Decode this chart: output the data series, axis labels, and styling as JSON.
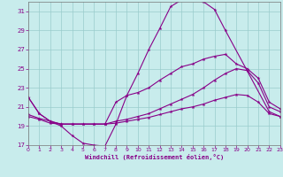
{
  "xlabel": "Windchill (Refroidissement éolien,°C)",
  "background_color": "#c8ecec",
  "grid_color": "#99cccc",
  "line_color": "#880088",
  "xlim": [
    0,
    23
  ],
  "ylim": [
    17,
    32
  ],
  "yticks": [
    17,
    19,
    21,
    23,
    25,
    27,
    29,
    31
  ],
  "xticks": [
    0,
    1,
    2,
    3,
    4,
    5,
    6,
    7,
    8,
    9,
    10,
    11,
    12,
    13,
    14,
    15,
    16,
    17,
    18,
    19,
    20,
    21,
    22,
    23
  ],
  "series": [
    {
      "x": [
        0,
        1,
        2,
        3,
        4,
        5,
        6,
        7,
        8,
        9,
        10,
        11,
        12,
        13,
        14,
        15,
        16,
        17,
        18,
        22,
        23
      ],
      "y": [
        22,
        20.3,
        19.5,
        19.0,
        18.0,
        17.2,
        17.0,
        16.9,
        19.2,
        22.2,
        24.5,
        27.0,
        29.2,
        31.5,
        32.2,
        32.2,
        32.0,
        31.2,
        29.0,
        20.5,
        20.0
      ]
    },
    {
      "x": [
        0,
        1,
        2,
        3,
        7,
        8,
        9,
        10,
        11,
        12,
        13,
        14,
        15,
        16,
        17,
        18,
        19,
        20,
        21,
        22,
        23
      ],
      "y": [
        22,
        20.3,
        19.5,
        19.2,
        19.2,
        21.5,
        22.2,
        22.5,
        23.0,
        23.8,
        24.5,
        25.2,
        25.5,
        26.0,
        26.3,
        26.5,
        25.5,
        25.0,
        24.0,
        21.5,
        20.8
      ]
    },
    {
      "x": [
        0,
        1,
        2,
        3,
        4,
        5,
        6,
        7,
        8,
        9,
        10,
        11,
        12,
        13,
        14,
        15,
        16,
        17,
        18,
        19,
        20,
        21,
        22,
        23
      ],
      "y": [
        20.2,
        19.8,
        19.5,
        19.2,
        19.2,
        19.2,
        19.2,
        19.2,
        19.5,
        19.7,
        20.0,
        20.3,
        20.8,
        21.3,
        21.8,
        22.3,
        23.0,
        23.8,
        24.5,
        25.0,
        24.8,
        23.5,
        21.0,
        20.5
      ]
    },
    {
      "x": [
        0,
        1,
        2,
        3,
        4,
        5,
        6,
        7,
        8,
        9,
        10,
        11,
        12,
        13,
        14,
        15,
        16,
        17,
        18,
        19,
        20,
        21,
        22,
        23
      ],
      "y": [
        20.0,
        19.7,
        19.3,
        19.2,
        19.2,
        19.2,
        19.2,
        19.2,
        19.3,
        19.5,
        19.7,
        19.9,
        20.2,
        20.5,
        20.8,
        21.0,
        21.3,
        21.7,
        22.0,
        22.3,
        22.2,
        21.5,
        20.3,
        20.0
      ]
    }
  ]
}
